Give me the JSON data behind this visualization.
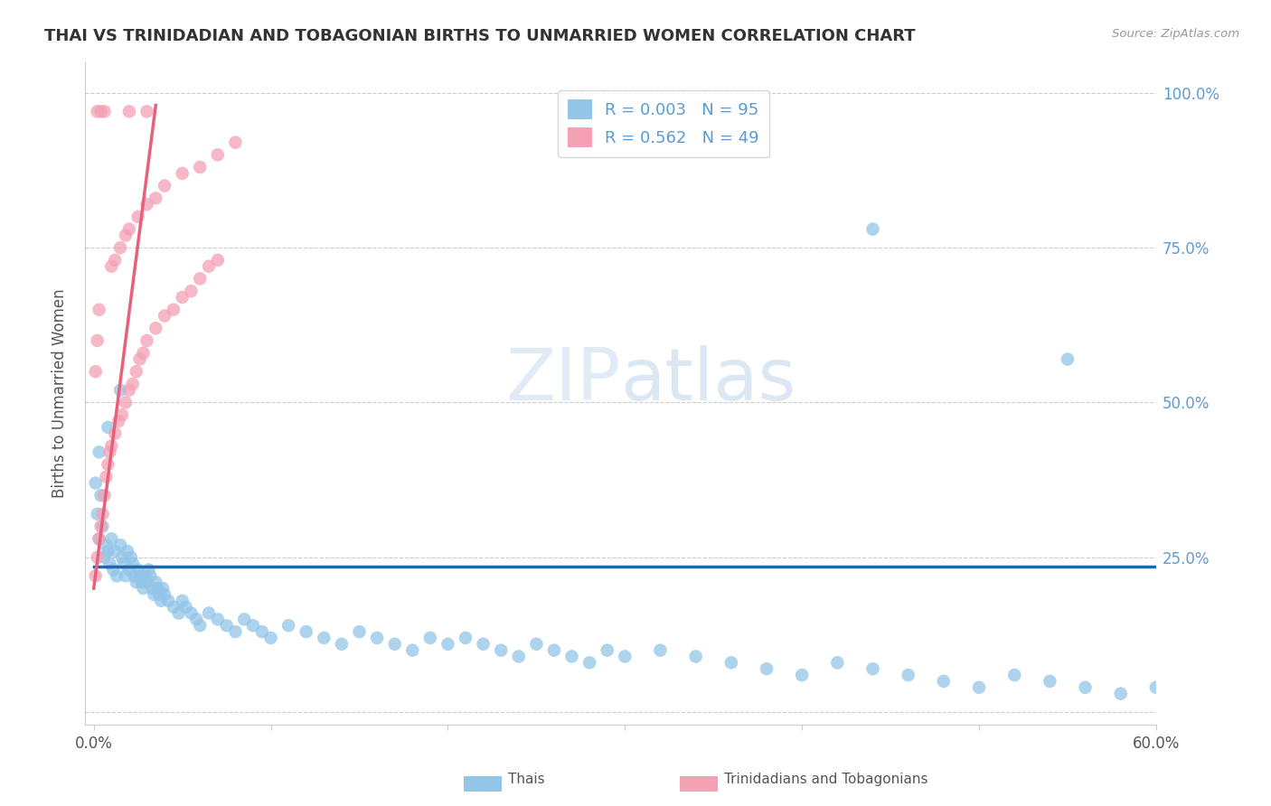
{
  "title": "THAI VS TRINIDADIAN AND TOBAGONIAN BIRTHS TO UNMARRIED WOMEN CORRELATION CHART",
  "source": "Source: ZipAtlas.com",
  "ylabel": "Births to Unmarried Women",
  "xlim": [
    0.0,
    0.6
  ],
  "ylim": [
    -0.02,
    1.05
  ],
  "xticks": [
    0.0,
    0.1,
    0.2,
    0.3,
    0.4,
    0.5,
    0.6
  ],
  "xticklabels": [
    "0.0%",
    "",
    "",
    "",
    "",
    "",
    "60.0%"
  ],
  "yticks_right": [
    0.0,
    0.25,
    0.5,
    0.75,
    1.0
  ],
  "yticklabels_right": [
    "",
    "25.0%",
    "50.0%",
    "75.0%",
    "100.0%"
  ],
  "thai_R": "0.003",
  "thai_N": "95",
  "tnt_R": "0.562",
  "tnt_N": "49",
  "legend_label1": "Thais",
  "legend_label2": "Trinidadians and Tobagonians",
  "thai_color": "#92C5E8",
  "tnt_color": "#F4A0B5",
  "thai_line_color": "#2166AC",
  "tnt_line_color": "#E8607A",
  "watermark": "ZIPatlas",
  "thai_x": [
    0.001,
    0.002,
    0.003,
    0.004,
    0.005,
    0.006,
    0.007,
    0.008,
    0.009,
    0.01,
    0.011,
    0.012,
    0.013,
    0.015,
    0.016,
    0.017,
    0.018,
    0.019,
    0.02,
    0.021,
    0.022,
    0.023,
    0.024,
    0.025,
    0.026,
    0.027,
    0.028,
    0.029,
    0.03,
    0.031,
    0.032,
    0.033,
    0.034,
    0.035,
    0.036,
    0.037,
    0.038,
    0.039,
    0.04,
    0.042,
    0.045,
    0.048,
    0.05,
    0.052,
    0.055,
    0.058,
    0.06,
    0.065,
    0.07,
    0.075,
    0.08,
    0.085,
    0.09,
    0.095,
    0.1,
    0.11,
    0.12,
    0.13,
    0.14,
    0.15,
    0.16,
    0.17,
    0.18,
    0.19,
    0.2,
    0.21,
    0.22,
    0.23,
    0.24,
    0.25,
    0.26,
    0.27,
    0.28,
    0.29,
    0.3,
    0.32,
    0.34,
    0.36,
    0.38,
    0.4,
    0.42,
    0.44,
    0.46,
    0.48,
    0.5,
    0.52,
    0.54,
    0.56,
    0.58,
    0.6,
    0.003,
    0.008,
    0.015,
    0.44,
    0.55
  ],
  "thai_y": [
    0.37,
    0.32,
    0.28,
    0.35,
    0.3,
    0.25,
    0.27,
    0.26,
    0.24,
    0.28,
    0.23,
    0.26,
    0.22,
    0.27,
    0.25,
    0.24,
    0.22,
    0.26,
    0.23,
    0.25,
    0.24,
    0.22,
    0.21,
    0.23,
    0.22,
    0.21,
    0.2,
    0.22,
    0.21,
    0.23,
    0.22,
    0.2,
    0.19,
    0.21,
    0.2,
    0.19,
    0.18,
    0.2,
    0.19,
    0.18,
    0.17,
    0.16,
    0.18,
    0.17,
    0.16,
    0.15,
    0.14,
    0.16,
    0.15,
    0.14,
    0.13,
    0.15,
    0.14,
    0.13,
    0.12,
    0.14,
    0.13,
    0.12,
    0.11,
    0.13,
    0.12,
    0.11,
    0.1,
    0.12,
    0.11,
    0.12,
    0.11,
    0.1,
    0.09,
    0.11,
    0.1,
    0.09,
    0.08,
    0.1,
    0.09,
    0.1,
    0.09,
    0.08,
    0.07,
    0.06,
    0.08,
    0.07,
    0.06,
    0.05,
    0.04,
    0.06,
    0.05,
    0.04,
    0.03,
    0.04,
    0.42,
    0.46,
    0.52,
    0.78,
    0.57
  ],
  "tnt_x": [
    0.001,
    0.002,
    0.003,
    0.004,
    0.005,
    0.006,
    0.007,
    0.008,
    0.009,
    0.01,
    0.012,
    0.014,
    0.016,
    0.018,
    0.02,
    0.022,
    0.024,
    0.026,
    0.028,
    0.03,
    0.035,
    0.04,
    0.045,
    0.05,
    0.055,
    0.06,
    0.065,
    0.07,
    0.001,
    0.002,
    0.003,
    0.01,
    0.012,
    0.015,
    0.018,
    0.02,
    0.025,
    0.03,
    0.035,
    0.04,
    0.05,
    0.06,
    0.07,
    0.08,
    0.002,
    0.004,
    0.006,
    0.02,
    0.03
  ],
  "tnt_y": [
    0.22,
    0.25,
    0.28,
    0.3,
    0.32,
    0.35,
    0.38,
    0.4,
    0.42,
    0.43,
    0.45,
    0.47,
    0.48,
    0.5,
    0.52,
    0.53,
    0.55,
    0.57,
    0.58,
    0.6,
    0.62,
    0.64,
    0.65,
    0.67,
    0.68,
    0.7,
    0.72,
    0.73,
    0.55,
    0.6,
    0.65,
    0.72,
    0.73,
    0.75,
    0.77,
    0.78,
    0.8,
    0.82,
    0.83,
    0.85,
    0.87,
    0.88,
    0.9,
    0.92,
    0.97,
    0.97,
    0.97,
    0.97,
    0.97
  ],
  "thai_line_x": [
    0.0,
    0.6
  ],
  "thai_line_y": [
    0.235,
    0.235
  ],
  "tnt_line_x": [
    0.0,
    0.035
  ],
  "tnt_line_y": [
    0.2,
    0.98
  ]
}
